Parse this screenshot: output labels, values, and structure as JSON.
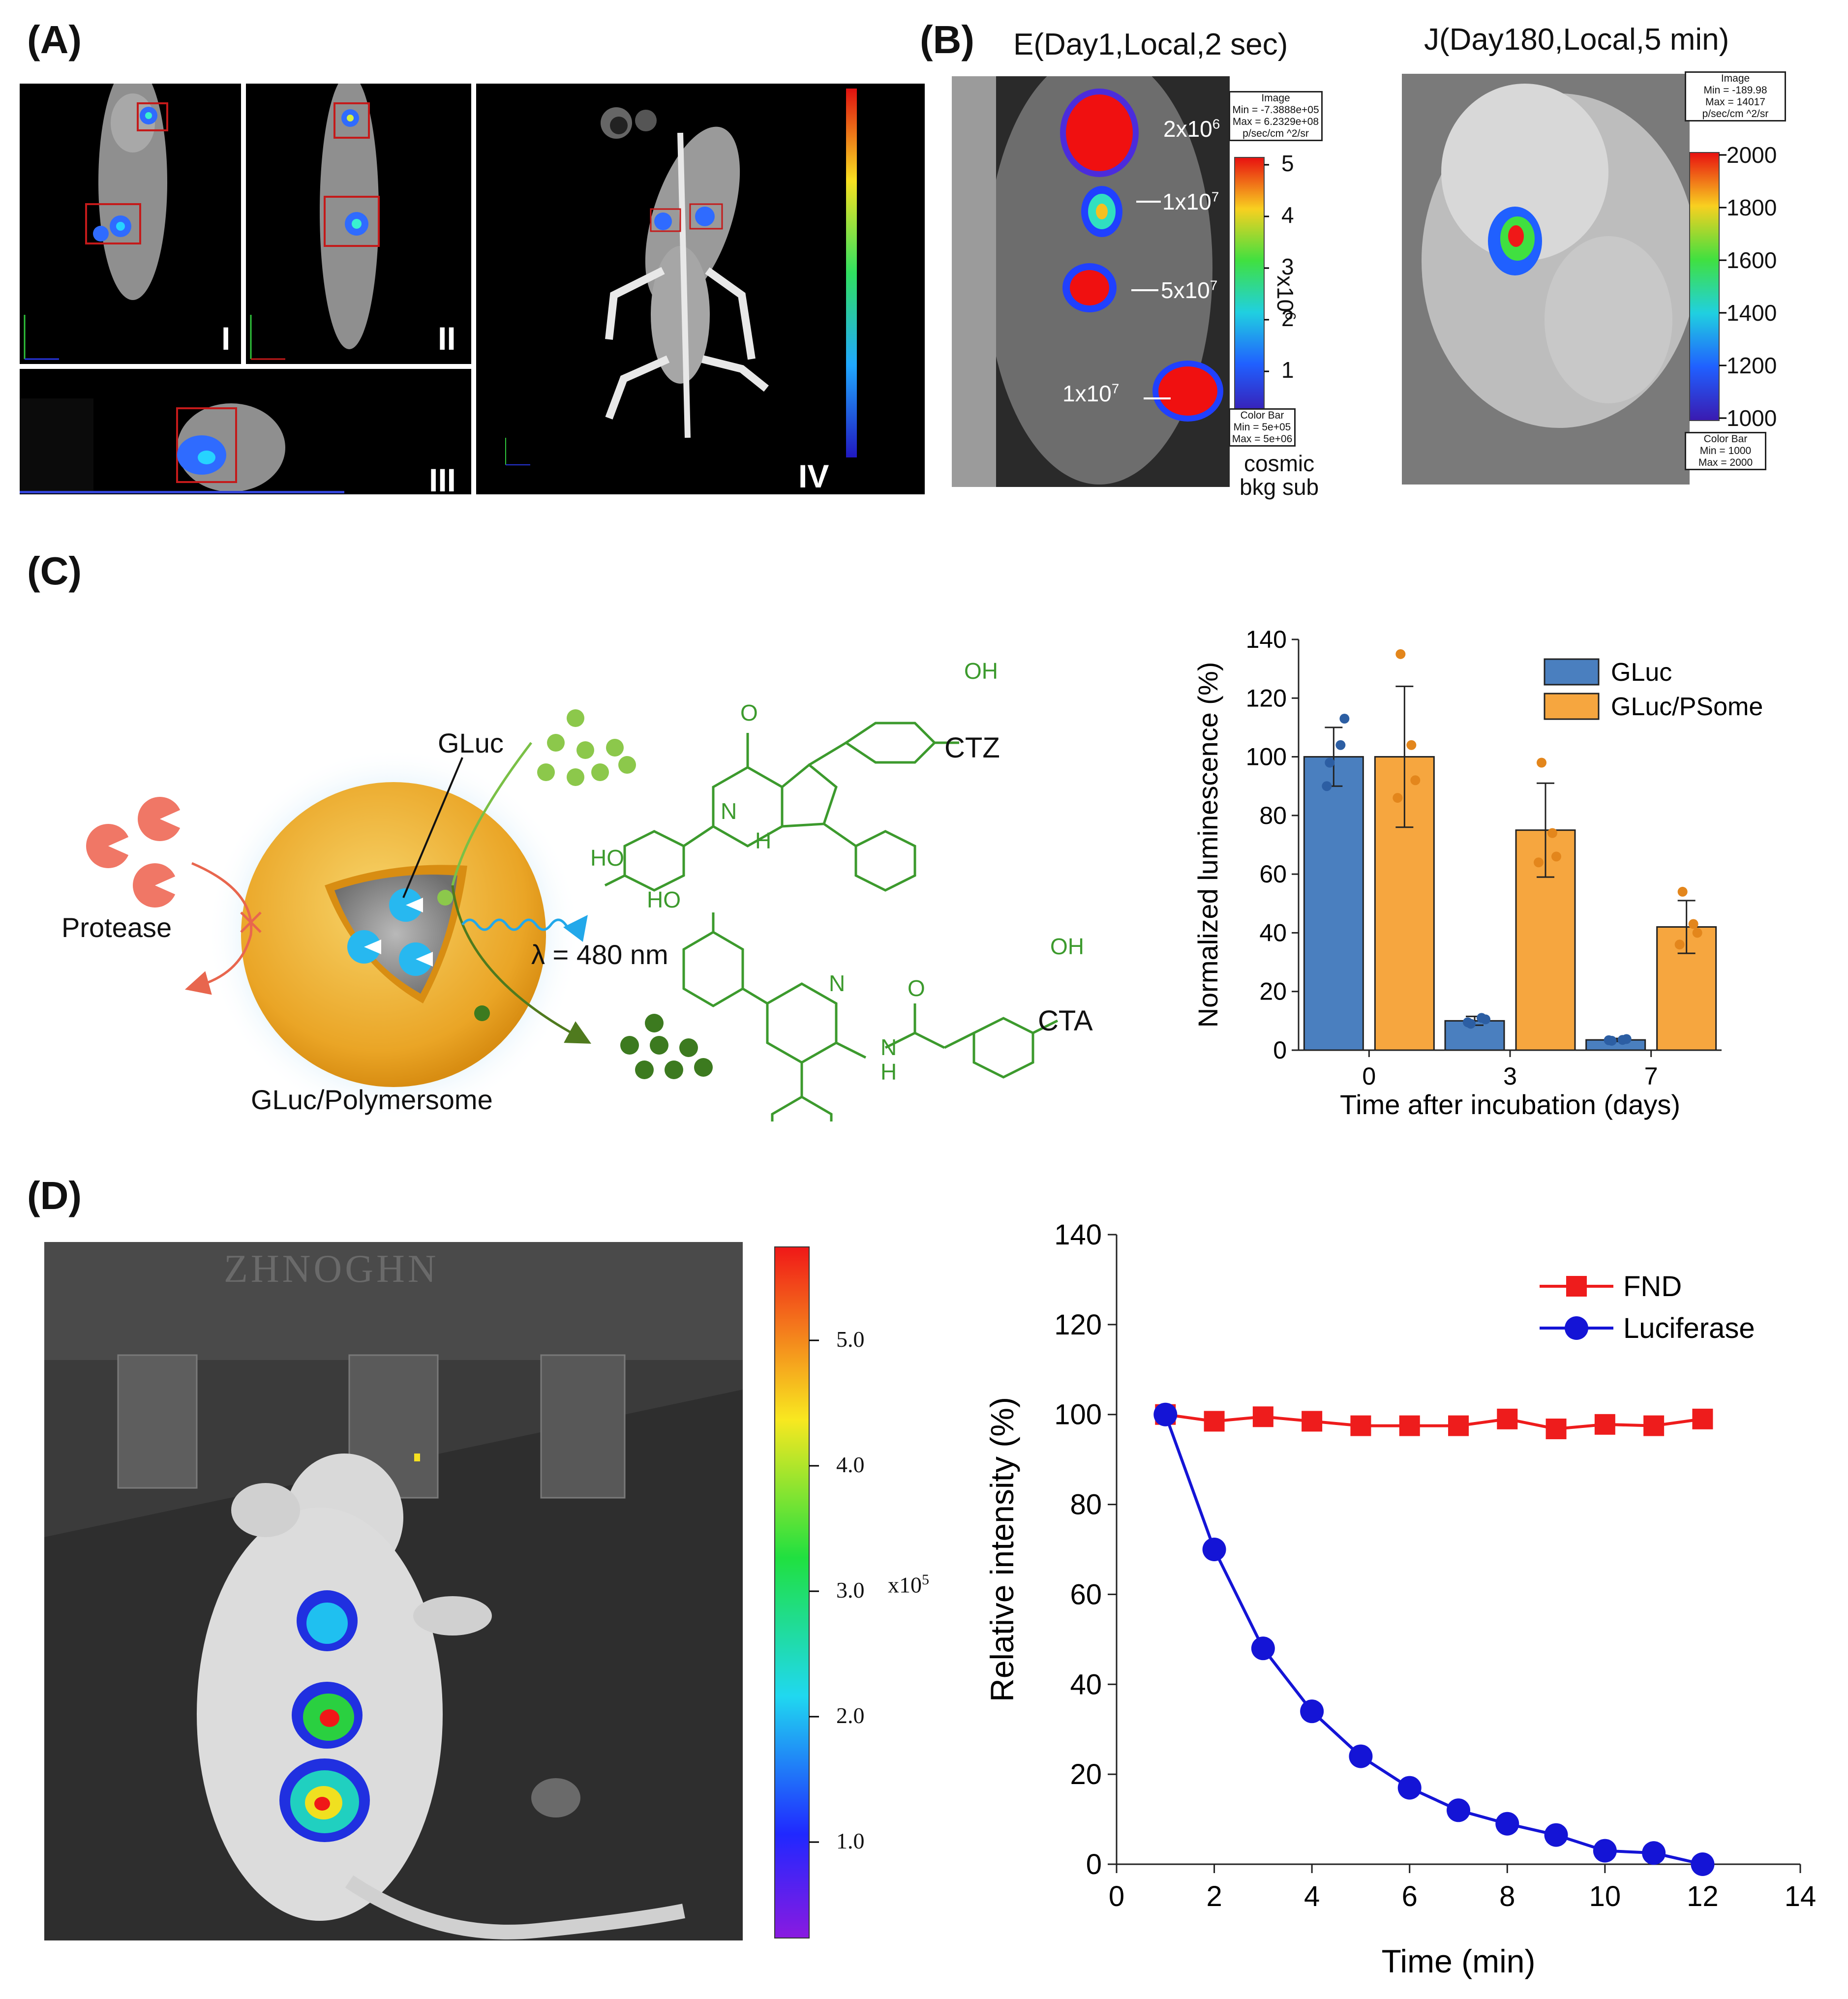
{
  "panels": {
    "a": {
      "label": "(A)",
      "views": [
        "I",
        "II",
        "III",
        "IV"
      ]
    },
    "b": {
      "label": "(B)",
      "left": {
        "title": "E(Day1,Local,2 sec)",
        "image_box": [
          "Image",
          "Min = -7.3888e+05",
          "Max = 6.2329e+08",
          "p/sec/cm ^2/sr"
        ],
        "spots": [
          "2x10",
          "1x10",
          "5x10",
          "1x10"
        ],
        "spot_exponents": [
          "6",
          "7",
          "7",
          "7"
        ],
        "scale_ticks": [
          "5",
          "4",
          "3",
          "2",
          "1"
        ],
        "scale_unit": "x10",
        "scale_unit_exp": "6",
        "colorbar_box": [
          "Color Bar",
          "Min = 5e+05",
          "Max = 5e+06"
        ],
        "note": [
          "cosmic",
          "bkg sub"
        ]
      },
      "right": {
        "title": "J(Day180,Local,5 min)",
        "image_box": [
          "Image",
          "Min = -189.98",
          "Max = 14017",
          "p/sec/cm ^2/sr"
        ],
        "scale_ticks": [
          "2000",
          "1800",
          "1600",
          "1400",
          "1200",
          "1000"
        ],
        "colorbar_box": [
          "Color Bar",
          "Min = 1000",
          "Max = 2000"
        ]
      }
    },
    "c": {
      "label": "(C)",
      "schematic": {
        "gluc": "GLuc",
        "protease": "Protease",
        "wavelength": "λ = 480 nm",
        "polymersome": "GLuc/Polymersome",
        "ctz": "CTZ",
        "cta": "CTA",
        "oh": "OH",
        "ho": "HO",
        "o": "O",
        "n": "N",
        "h": "H"
      }
    },
    "d": {
      "label": "(D)",
      "watermark": "ZHNOGHN",
      "scale_ticks": [
        "5.0",
        "4.0",
        "3.0",
        "2.0",
        "1.0"
      ],
      "scale_unit": "x10",
      "scale_unit_exp": "5"
    }
  },
  "chart_data": [
    {
      "id": "c-bar",
      "type": "bar",
      "categories": [
        "0",
        "3",
        "7"
      ],
      "series": [
        {
          "name": "GLuc",
          "color": "#4a7fbf",
          "values": [
            100,
            10,
            3.5
          ],
          "errors": [
            10,
            1.5,
            0.5
          ],
          "points": [
            [
              98,
              104,
              113,
              90
            ],
            [
              9,
              11,
              10.5,
              9.5
            ],
            [
              3.2,
              3.5,
              3.8,
              3.4
            ]
          ]
        },
        {
          "name": "GLuc/PSome",
          "color": "#f6a63f",
          "values": [
            100,
            75,
            42
          ],
          "errors": [
            24,
            16,
            9
          ],
          "points": [
            [
              135,
              104,
              92,
              86
            ],
            [
              98,
              74,
              66,
              64
            ],
            [
              54,
              43,
              40,
              36
            ]
          ]
        }
      ],
      "title": "",
      "xlabel": "Time after incubation (days)",
      "ylabel": "Normalized luminescence (%)",
      "ylim": [
        0,
        140
      ],
      "yticks": [
        0,
        20,
        40,
        60,
        80,
        100,
        120,
        140
      ],
      "legend": "top-right"
    },
    {
      "id": "d-line",
      "type": "line",
      "x": [
        1,
        2,
        3,
        4,
        5,
        6,
        7,
        8,
        9,
        10,
        11,
        12
      ],
      "series": [
        {
          "name": "FND",
          "color": "#ee1c1c",
          "marker": "square",
          "values": [
            100,
            98.5,
            99.5,
            98.5,
            97.5,
            97.5,
            97.5,
            99,
            96.8,
            97.8,
            97.5,
            99
          ]
        },
        {
          "name": "Luciferase",
          "color": "#1414d6",
          "marker": "circle",
          "values": [
            100,
            70,
            48,
            34,
            24,
            17,
            12,
            9,
            6.5,
            3,
            2.5,
            0
          ]
        }
      ],
      "title": "",
      "xlabel": "Time (min)",
      "ylabel": "Relative intensity (%)",
      "xlim": [
        0,
        14
      ],
      "ylim": [
        0,
        140
      ],
      "xticks": [
        0,
        2,
        4,
        6,
        8,
        10,
        12,
        14
      ],
      "yticks": [
        0,
        20,
        40,
        60,
        80,
        100,
        120,
        140
      ],
      "legend": "top-right"
    }
  ]
}
